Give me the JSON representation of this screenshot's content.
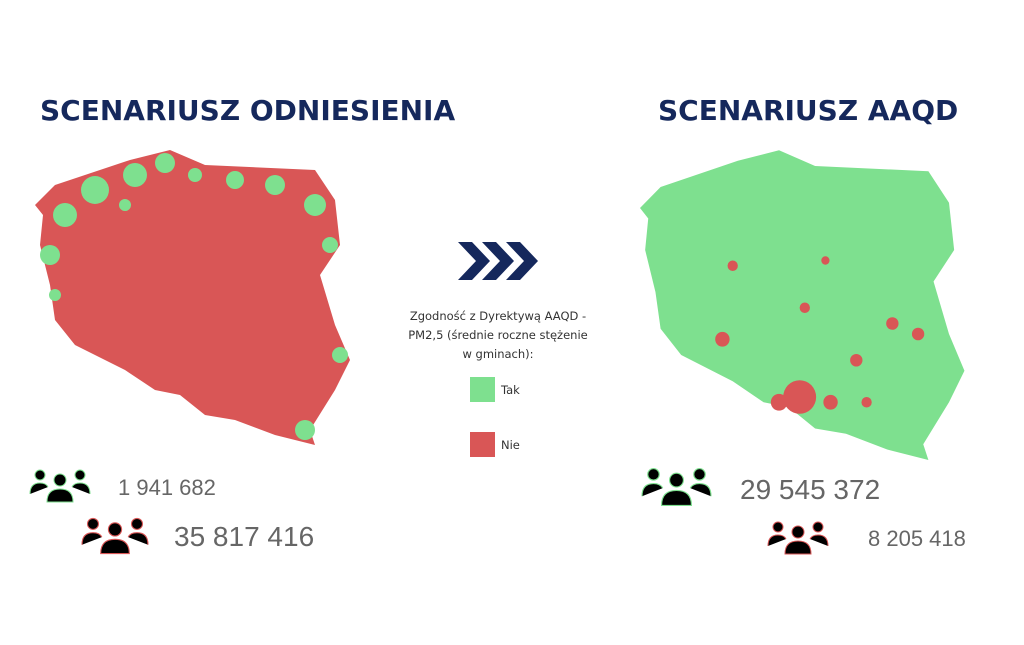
{
  "left": {
    "title": "SCENARIUSZ ODNIESIENIA",
    "population_tak": "1 941 682",
    "population_nie": "35 817 416"
  },
  "right": {
    "title": "SCENARIUSZ AAQD",
    "population_tak": "29 545 372",
    "population_nie": "8 205 418"
  },
  "legend": {
    "lines": [
      "Zgodność z Dyrektywą AAQD -",
      "PM2,5 (średnie roczne stężenie",
      "w gminach):"
    ],
    "items": [
      {
        "label": "Tak",
        "color": "#7ee08f"
      },
      {
        "label": "Nie",
        "color": "#d95656"
      }
    ]
  }
}
